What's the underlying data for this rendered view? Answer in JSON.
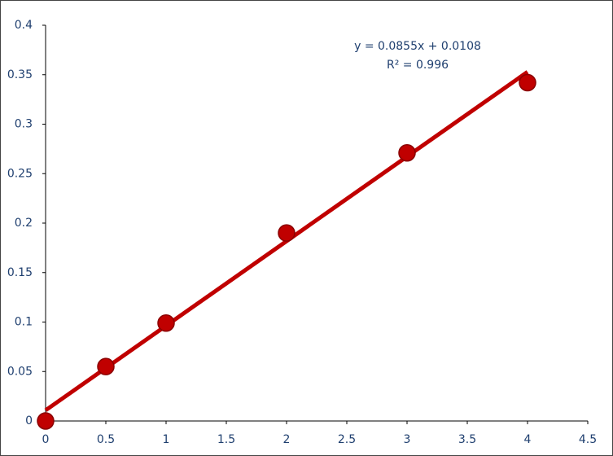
{
  "chart_data": {
    "type": "scatter",
    "x": [
      0,
      0.5,
      1,
      2,
      3,
      4
    ],
    "values": [
      0,
      0.055,
      0.099,
      0.19,
      0.271,
      0.342
    ],
    "color": "#c00000",
    "xlim": [
      0,
      4.5
    ],
    "xticks": [
      0,
      0.5,
      1,
      1.5,
      2,
      2.5,
      3,
      3.5,
      4,
      4.5
    ],
    "ylim": [
      0,
      0.4
    ],
    "yticks": [
      0,
      0.05,
      0.1,
      0.15,
      0.2,
      0.25,
      0.3,
      0.35,
      0.4
    ],
    "grid": false,
    "trendline": {
      "slope": 0.0855,
      "intercept": 0.0108,
      "equation": "y = 0.0855x + 0.0108",
      "r2": "R² = 0.996",
      "color": "#c00000"
    }
  }
}
